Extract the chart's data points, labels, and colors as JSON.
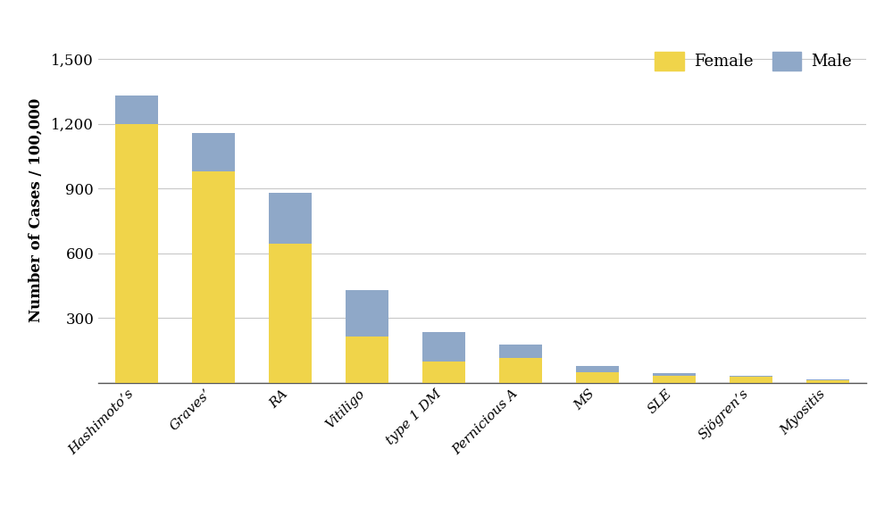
{
  "categories": [
    "Hashimoto’s",
    "Graves’",
    "RA",
    "Vitiligo",
    "type 1 DM",
    "Pernicious A",
    "MS",
    "SLE",
    "Sjögren’s",
    "Myositis"
  ],
  "female_values": [
    1200,
    980,
    645,
    215,
    100,
    115,
    50,
    35,
    30,
    12
  ],
  "male_values": [
    130,
    175,
    235,
    215,
    135,
    65,
    30,
    10,
    5,
    5
  ],
  "female_color": "#f0d44a",
  "male_color": "#8fa8c8",
  "ylabel": "Number of Cases / 100,000",
  "ylim": [
    0,
    1600
  ],
  "yticks": [
    0,
    300,
    600,
    900,
    1200,
    1500
  ],
  "ytick_labels": [
    "",
    "300",
    "600",
    "900",
    "1,200",
    "1,500"
  ],
  "legend_labels": [
    "Female",
    "Male"
  ],
  "background_color": "#ffffff",
  "grid_color": "#c8c8c8",
  "bar_width": 0.55,
  "figsize": [
    10.0,
    5.96
  ],
  "dpi": 100
}
